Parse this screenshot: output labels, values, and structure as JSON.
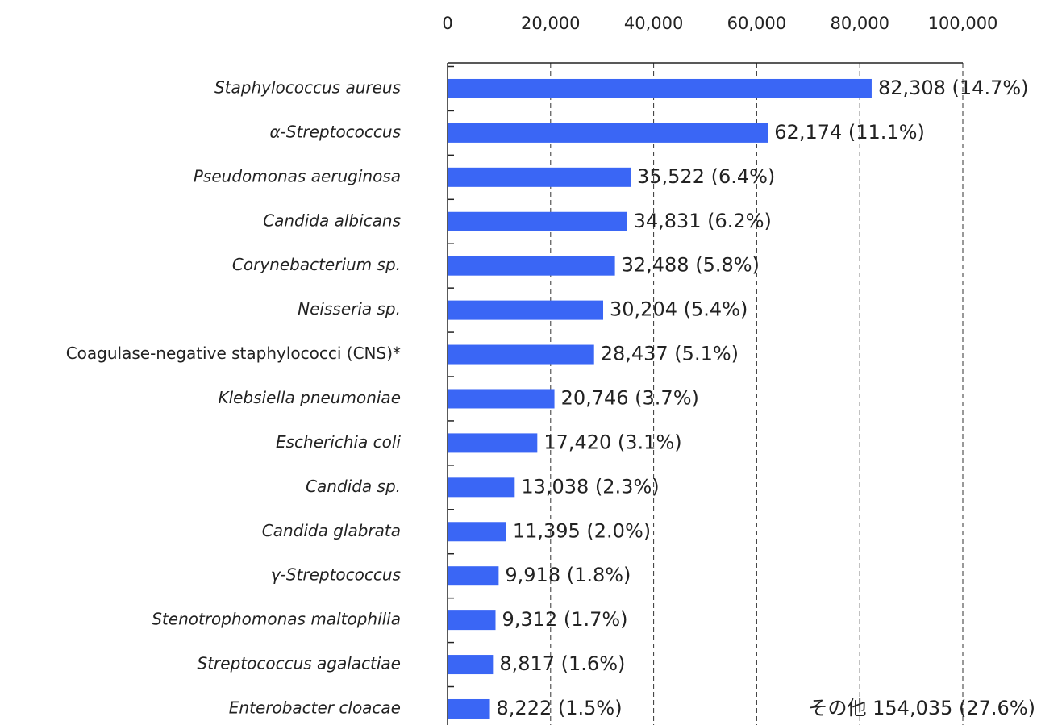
{
  "chart_data": {
    "type": "bar",
    "orientation": "horizontal",
    "categories": [
      "Staphylococcus aureus",
      "α-Streptococcus",
      "Pseudomonas aeruginosa",
      "Candida albicans",
      "Corynebacterium sp.",
      "Neisseria sp.",
      "Coagulase-negative staphylococci (CNS)*",
      "Klebsiella pneumoniae",
      "Escherichia coli",
      "Candida sp.",
      "Candida glabrata",
      "γ-Streptococcus",
      "Stenotrophomonas maltophilia",
      "Streptococcus agalactiae",
      "Enterobacter cloacae"
    ],
    "values": [
      82308,
      62174,
      35522,
      34831,
      32488,
      30204,
      28437,
      20746,
      17420,
      13038,
      11395,
      9918,
      9312,
      8817,
      8222
    ],
    "value_labels": [
      "82,308 (14.7%)",
      "62,174 (11.1%)",
      "35,522 (6.4%)",
      "34,831 (6.2%)",
      "32,488 (5.8%)",
      "30,204 (5.4%)",
      "28,437 (5.1%)",
      "20,746 (3.7%)",
      "17,420 (3.1%)",
      "13,038 (2.3%)",
      "11,395 (2.0%)",
      "9,918 (1.8%)",
      "9,312 (1.7%)",
      "8,817 (1.6%)",
      "8,222 (1.5%)"
    ],
    "color": "#3a66f5",
    "xlim": [
      0,
      100000
    ],
    "xticks": [
      0,
      {
        "value": 20000,
        "label": "20,000"
      },
      {
        "value": 40000,
        "label": "40,000"
      },
      {
        "value": 60000,
        "label": "60,000"
      },
      {
        "value": 80000,
        "label": "80,000"
      },
      {
        "value": 100000,
        "label": "100,000"
      }
    ],
    "grid": true,
    "annotation": "その他 154,035 (27.6%)"
  }
}
